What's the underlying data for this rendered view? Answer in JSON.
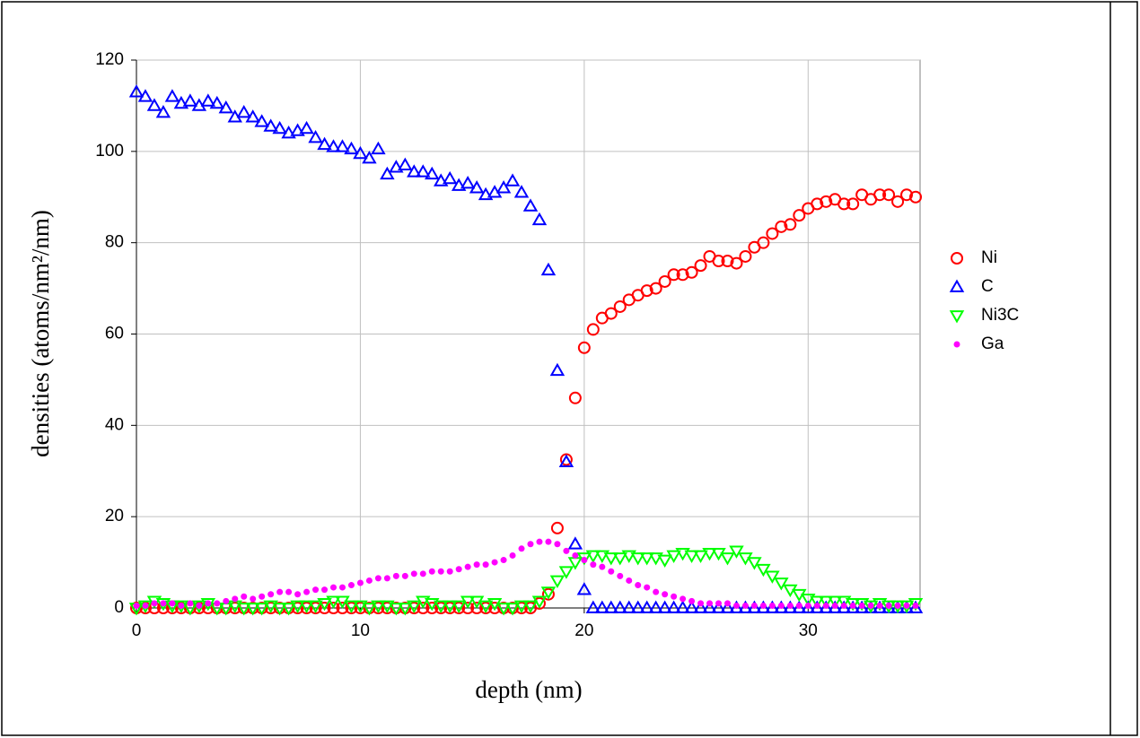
{
  "chart_data": {
    "type": "scatter",
    "xlabel": "depth (nm)",
    "ylabel": "densities (atoms/nm²/nm)",
    "xlim": [
      0,
      35
    ],
    "xticks": [
      0,
      10,
      20,
      30
    ],
    "ylim": [
      0,
      120
    ],
    "yticks": [
      0,
      20,
      40,
      60,
      80,
      100,
      120
    ],
    "grid": true,
    "legend": "right",
    "x": [
      0,
      0.4,
      0.8,
      1.2,
      1.6,
      2,
      2.4,
      2.8,
      3.2,
      3.6,
      4,
      4.4,
      4.8,
      5.2,
      5.6,
      6,
      6.4,
      6.8,
      7.2,
      7.6,
      8,
      8.4,
      8.8,
      9.2,
      9.6,
      10,
      10.4,
      10.8,
      11.2,
      11.6,
      12,
      12.4,
      12.8,
      13.2,
      13.6,
      14,
      14.4,
      14.8,
      15.2,
      15.6,
      16,
      16.4,
      16.8,
      17.2,
      17.6,
      18,
      18.4,
      18.8,
      19.2,
      19.6,
      20,
      20.4,
      20.8,
      21.2,
      21.6,
      22,
      22.4,
      22.8,
      23.2,
      23.6,
      24,
      24.4,
      24.8,
      25.2,
      25.6,
      26,
      26.4,
      26.8,
      27.2,
      27.6,
      28,
      28.4,
      28.8,
      29.2,
      29.6,
      30,
      30.4,
      30.8,
      31.2,
      31.6,
      32,
      32.4,
      32.8,
      33.2,
      33.6,
      34,
      34.4,
      34.8
    ],
    "series": [
      {
        "name": "Ni",
        "color": "#ff0000",
        "marker": "circle",
        "values": [
          0,
          0,
          0,
          0,
          0,
          0,
          0,
          0,
          0,
          0,
          0,
          0,
          0,
          0,
          0,
          0,
          0,
          0,
          0,
          0,
          0,
          0,
          0,
          0,
          0,
          0,
          0,
          0,
          0,
          0,
          0,
          0,
          0,
          0,
          0,
          0,
          0,
          0,
          0,
          0,
          0,
          0,
          0,
          0,
          0,
          1,
          3,
          17.5,
          32.5,
          46,
          57,
          61,
          63.5,
          64.5,
          66,
          67.5,
          68.5,
          69.5,
          70,
          71.5,
          73,
          73,
          73.5,
          75,
          77,
          76,
          76,
          75.5,
          77,
          79,
          80,
          82,
          83.5,
          84,
          86,
          87.5,
          88.5,
          89,
          89.5,
          88.5,
          88.5,
          90.5,
          89.5,
          90.5,
          90.5,
          89,
          90.5,
          90
        ]
      },
      {
        "name": "C",
        "color": "#0000ff",
        "marker": "triangle",
        "values": [
          113,
          112,
          110,
          108.5,
          112,
          110.5,
          111,
          110,
          111,
          110.5,
          109.5,
          107.5,
          108.5,
          107.5,
          106.5,
          105.5,
          105,
          104,
          104.5,
          105,
          103,
          101.5,
          101,
          101,
          100.5,
          99.5,
          98.5,
          100.5,
          95,
          96.5,
          97,
          95.5,
          95.5,
          95,
          93.5,
          94,
          92.5,
          93,
          92,
          90.5,
          91,
          92,
          93.5,
          91,
          88,
          85,
          74,
          52,
          32,
          14,
          4,
          0,
          0,
          0,
          0,
          0,
          0,
          0,
          0,
          0,
          0,
          0,
          0,
          0,
          0,
          0,
          0,
          0,
          0,
          0,
          0,
          0,
          0,
          0,
          0,
          0,
          0,
          0,
          0,
          0,
          0,
          0,
          0,
          0,
          0,
          0,
          0,
          0
        ]
      },
      {
        "name": "Ni3C",
        "color": "#00ff00",
        "marker": "triangle-down",
        "values": [
          0,
          0.5,
          1.5,
          1,
          0.5,
          0.5,
          0,
          0.5,
          1,
          0,
          0,
          0.5,
          0,
          0,
          0,
          0.5,
          0,
          0,
          0.5,
          0.5,
          0.5,
          1,
          1.5,
          1.5,
          0.5,
          0.5,
          0,
          0.5,
          0.5,
          0,
          0,
          0.5,
          1.5,
          1,
          0.5,
          0.5,
          0.5,
          1.5,
          1.5,
          0.5,
          1,
          0,
          0,
          0.5,
          0.5,
          1.5,
          3.5,
          6,
          8,
          10,
          11,
          11.5,
          11.5,
          11,
          11,
          11.5,
          11,
          11,
          11,
          10.5,
          11.5,
          12,
          11.5,
          11.5,
          12,
          12,
          11,
          12.5,
          11,
          10,
          8.5,
          7,
          5.5,
          4,
          3,
          2,
          1.5,
          1.5,
          1.5,
          1.5,
          1,
          1,
          0.5,
          1,
          0.5,
          0.5,
          0.5,
          1
        ]
      },
      {
        "name": "Ga",
        "color": "#ff00ff",
        "marker": "dot",
        "values": [
          0.5,
          0.5,
          1,
          1,
          1,
          0.5,
          1,
          0.5,
          1,
          1,
          1.5,
          2,
          2.5,
          2,
          2.5,
          3,
          3.5,
          3.5,
          3,
          3.5,
          4,
          4,
          4.5,
          4.5,
          5,
          5.5,
          6,
          6.5,
          6.5,
          7,
          7,
          7.5,
          7.5,
          8,
          8,
          8,
          8.5,
          9,
          9.5,
          9.5,
          10,
          10.5,
          11.5,
          13,
          14,
          14.5,
          14.5,
          14,
          12.5,
          11.5,
          10.5,
          9.5,
          9,
          8,
          7,
          6,
          5,
          4.5,
          3.5,
          3,
          2.5,
          2,
          1.5,
          1,
          1,
          1,
          1,
          0.5,
          0.5,
          0.5,
          0.5,
          0.5,
          0.5,
          0.5,
          0.5,
          0.5,
          0.5,
          0.5,
          0.5,
          0.5,
          0.5,
          0.5,
          0.5,
          0.5,
          0.5,
          0.5,
          0.5,
          0.5
        ]
      }
    ]
  }
}
